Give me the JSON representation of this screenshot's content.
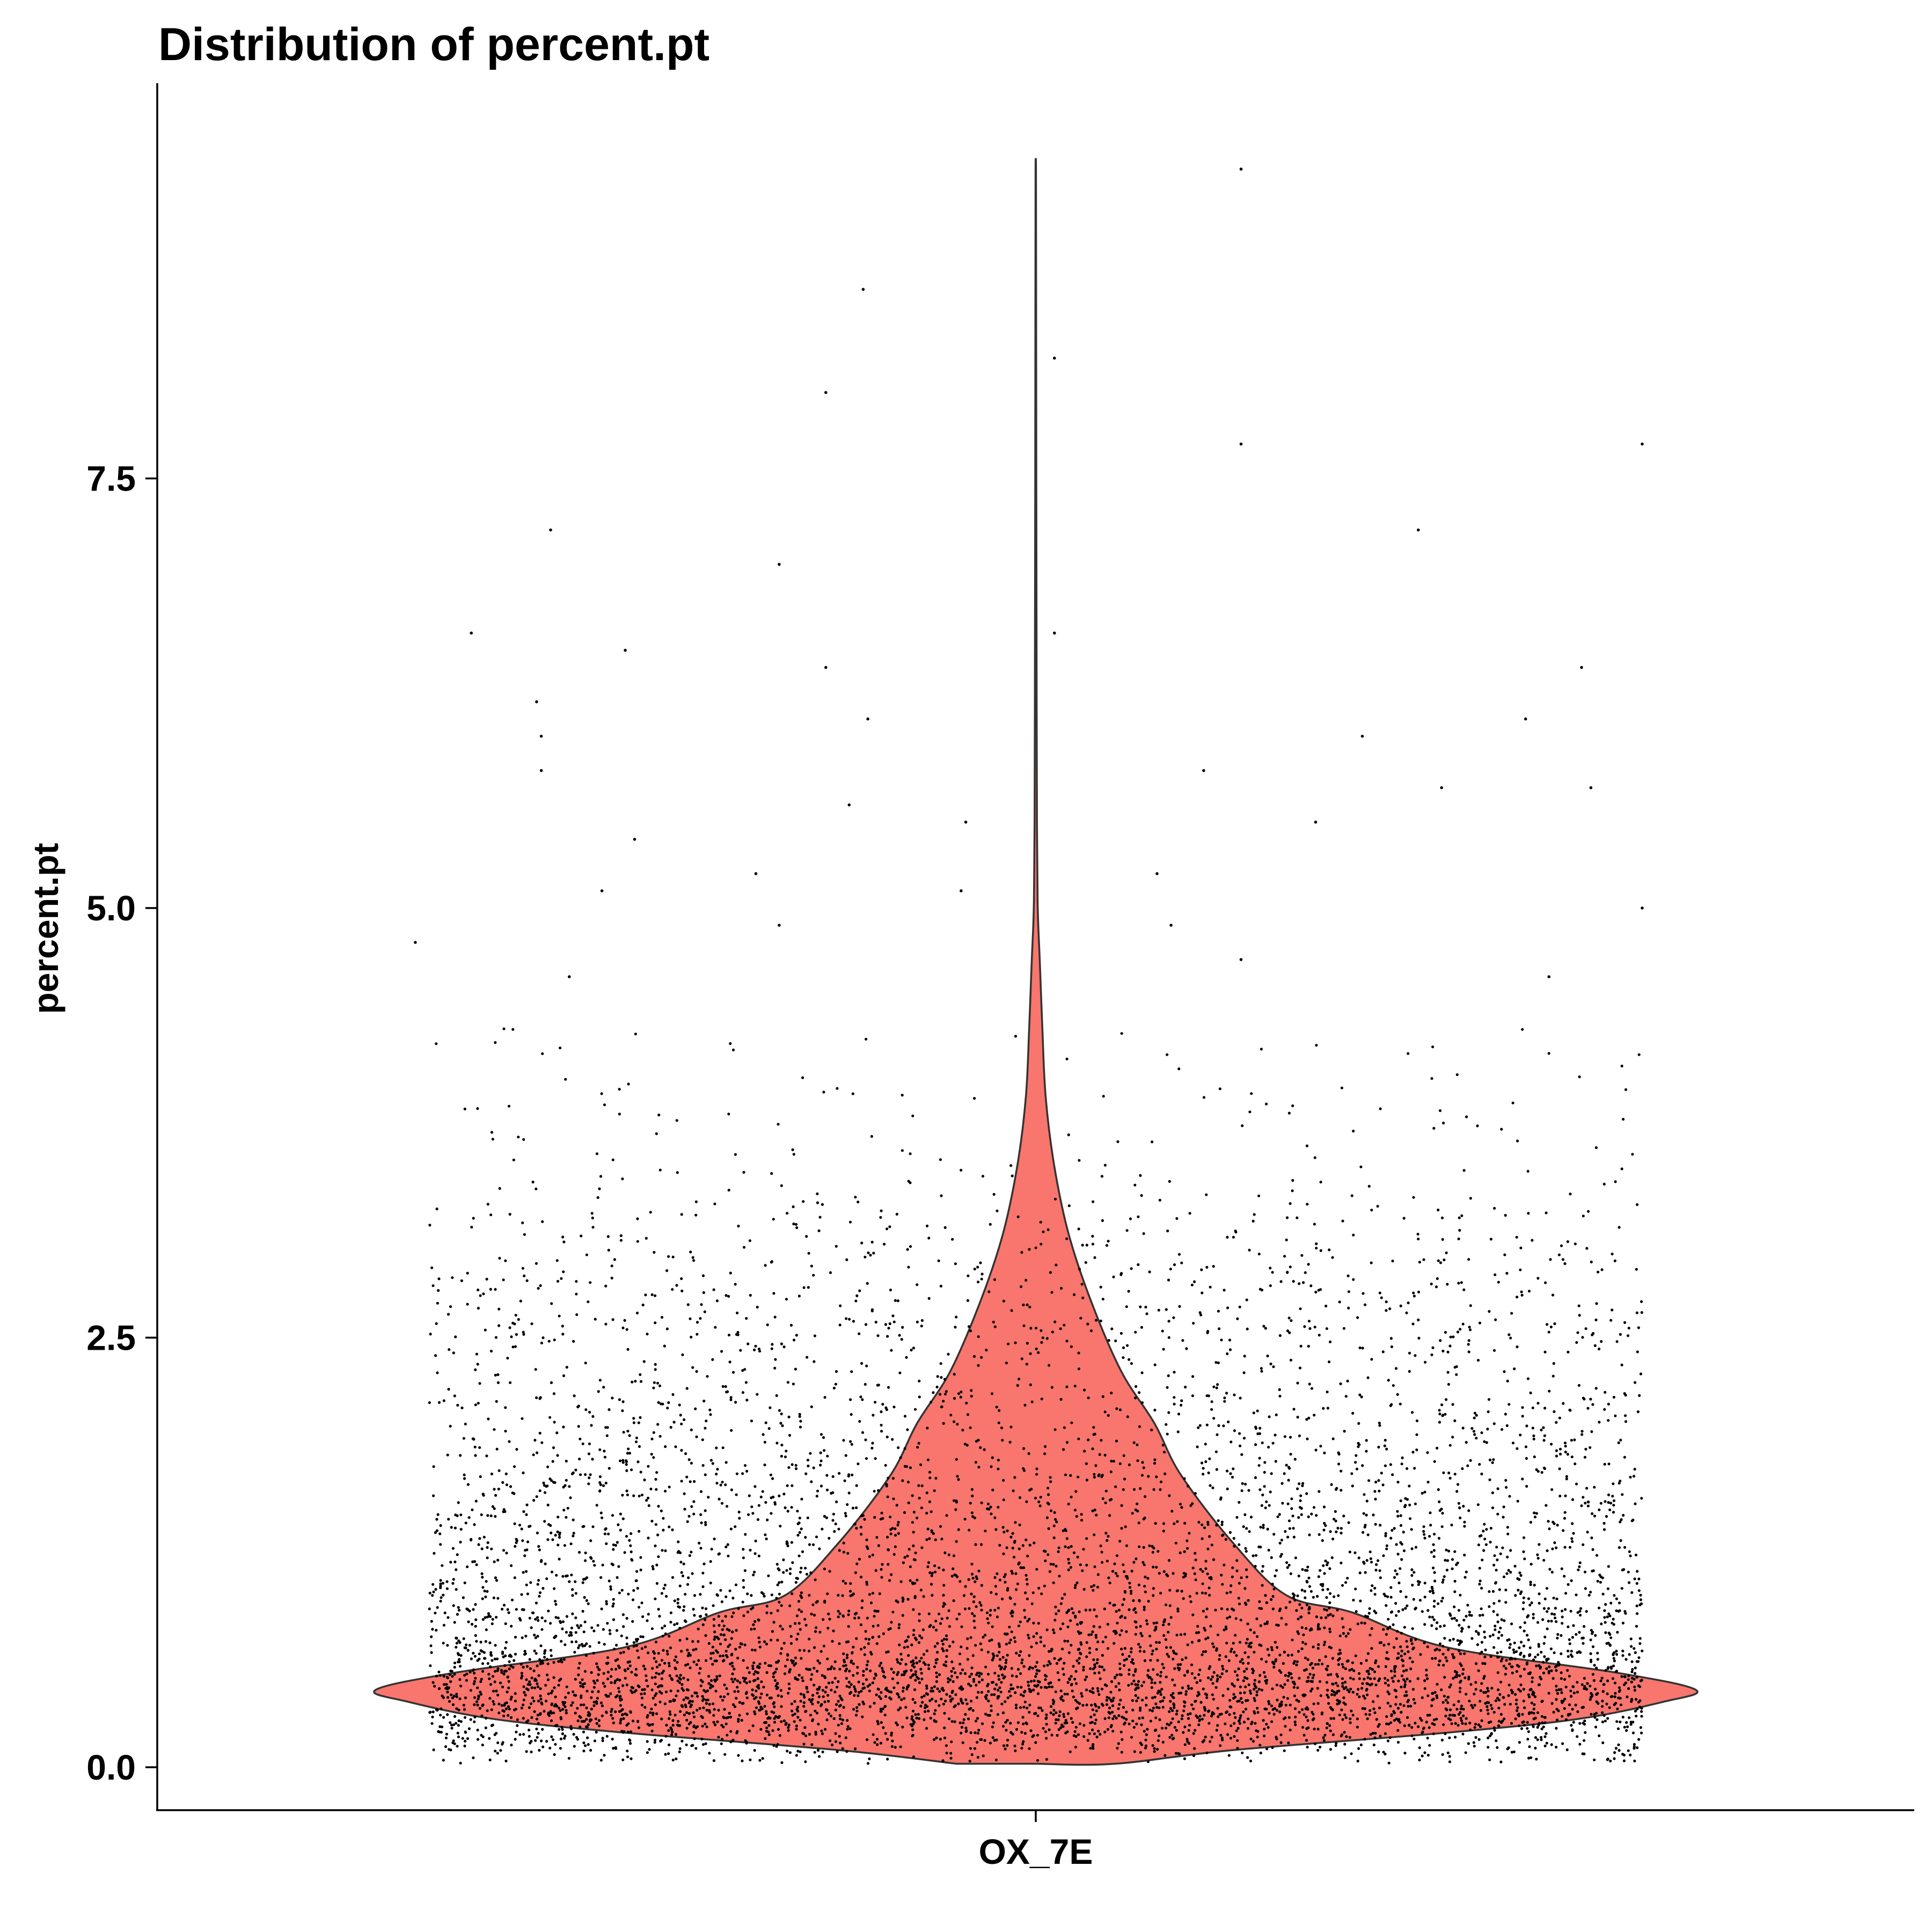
{
  "chart_data": {
    "type": "violin",
    "title": "Distribution of percent.pt",
    "xlabel": "",
    "ylabel": "percent.pt",
    "categories": [
      "OX_7E"
    ],
    "ylim": [
      -0.25,
      9.8
    ],
    "yticks": [
      0.0,
      2.5,
      5.0,
      7.5
    ],
    "ytick_labels": [
      "0.0",
      "2.5",
      "5.0",
      "7.5"
    ],
    "grid": false,
    "legend": "none",
    "fill_color": "#F8766D",
    "outline_color": "#333333",
    "point_color": "#000000",
    "violins": [
      {
        "category": "OX_7E",
        "min": 0.02,
        "max": 9.3,
        "density_profile": [
          {
            "y": 0.02,
            "halfwidth": 0.12
          },
          {
            "y": 0.1,
            "halfwidth": 0.3
          },
          {
            "y": 0.2,
            "halfwidth": 0.62
          },
          {
            "y": 0.28,
            "halfwidth": 0.82
          },
          {
            "y": 0.38,
            "halfwidth": 0.95
          },
          {
            "y": 0.45,
            "halfwidth": 1.0
          },
          {
            "y": 0.55,
            "halfwidth": 0.88
          },
          {
            "y": 0.7,
            "halfwidth": 0.62
          },
          {
            "y": 0.9,
            "halfwidth": 0.48
          },
          {
            "y": 1.0,
            "halfwidth": 0.38
          },
          {
            "y": 1.3,
            "halfwidth": 0.3
          },
          {
            "y": 1.7,
            "halfwidth": 0.22
          },
          {
            "y": 2.0,
            "halfwidth": 0.18
          },
          {
            "y": 2.3,
            "halfwidth": 0.13
          },
          {
            "y": 2.7,
            "halfwidth": 0.085
          },
          {
            "y": 3.1,
            "halfwidth": 0.05
          },
          {
            "y": 3.5,
            "halfwidth": 0.028
          },
          {
            "y": 3.9,
            "halfwidth": 0.015
          },
          {
            "y": 4.3,
            "halfwidth": 0.01
          },
          {
            "y": 4.7,
            "halfwidth": 0.006
          },
          {
            "y": 5.0,
            "halfwidth": 0.003
          },
          {
            "y": 5.5,
            "halfwidth": 0.0018
          },
          {
            "y": 6.5,
            "halfwidth": 0.0012
          },
          {
            "y": 7.5,
            "halfwidth": 0.0008
          },
          {
            "y": 8.5,
            "halfwidth": 0.0006
          },
          {
            "y": 9.3,
            "halfwidth": 0.0003
          }
        ],
        "n_points": 7000,
        "outlier_points": [
          {
            "y": 9.3,
            "jitter": 0.44
          },
          {
            "y": 8.6,
            "jitter": -0.37
          },
          {
            "y": 8.2,
            "jitter": 0.04
          },
          {
            "y": 8.0,
            "jitter": -0.45
          },
          {
            "y": 7.7,
            "jitter": 0.44
          },
          {
            "y": 7.7,
            "jitter": 1.3
          },
          {
            "y": 7.2,
            "jitter": 0.82
          },
          {
            "y": 7.2,
            "jitter": -1.04
          },
          {
            "y": 7.0,
            "jitter": -0.55
          },
          {
            "y": 6.6,
            "jitter": -1.21
          },
          {
            "y": 6.6,
            "jitter": 0.04
          },
          {
            "y": 6.5,
            "jitter": -0.88
          },
          {
            "y": 6.4,
            "jitter": -0.45
          },
          {
            "y": 6.4,
            "jitter": 1.17
          },
          {
            "y": 6.2,
            "jitter": -1.07
          },
          {
            "y": 6.1,
            "jitter": 1.05
          },
          {
            "y": 6.1,
            "jitter": -0.36
          },
          {
            "y": 6.0,
            "jitter": -1.06
          },
          {
            "y": 6.0,
            "jitter": 0.7
          },
          {
            "y": 5.8,
            "jitter": -1.06
          },
          {
            "y": 5.8,
            "jitter": 0.36
          },
          {
            "y": 5.7,
            "jitter": 0.87
          },
          {
            "y": 5.7,
            "jitter": 1.19
          },
          {
            "y": 5.6,
            "jitter": -0.4
          },
          {
            "y": 5.5,
            "jitter": -0.15
          },
          {
            "y": 5.5,
            "jitter": 0.6
          },
          {
            "y": 5.4,
            "jitter": -0.86
          },
          {
            "y": 5.2,
            "jitter": -0.6
          },
          {
            "y": 5.2,
            "jitter": 0.26
          },
          {
            "y": 5.1,
            "jitter": -0.93
          },
          {
            "y": 5.1,
            "jitter": -0.16
          },
          {
            "y": 5.0,
            "jitter": 1.3
          },
          {
            "y": 4.9,
            "jitter": -0.55
          },
          {
            "y": 4.9,
            "jitter": 0.29
          },
          {
            "y": 4.8,
            "jitter": -1.33
          },
          {
            "y": 4.7,
            "jitter": 0.44
          },
          {
            "y": 4.6,
            "jitter": -1.0
          },
          {
            "y": 4.6,
            "jitter": 1.1
          }
        ]
      }
    ]
  }
}
